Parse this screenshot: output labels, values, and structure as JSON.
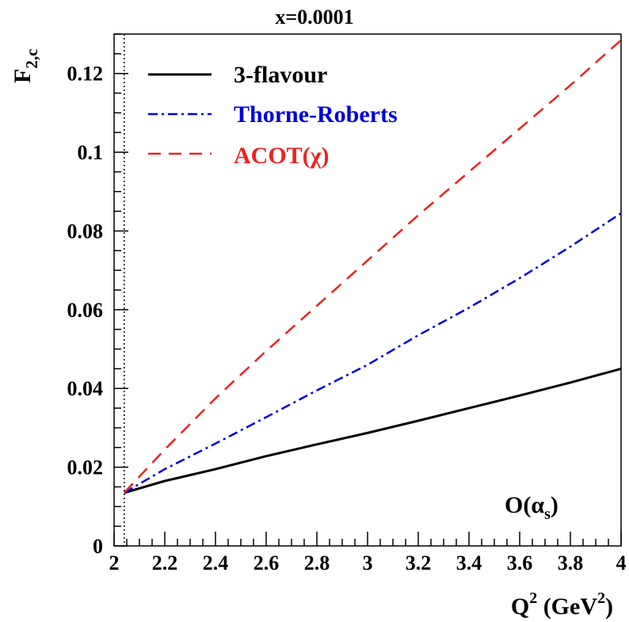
{
  "chart_data": {
    "type": "line",
    "title": "x=0.0001",
    "xlabel": {
      "main": "Q",
      "sup1": "2",
      "unit_open": " (GeV",
      "sup2": "2",
      "unit_close": ")"
    },
    "ylabel": {
      "main": "F",
      "sub": "2,c"
    },
    "xlim": [
      2,
      4
    ],
    "ylim": [
      0,
      0.13
    ],
    "xticks": [
      2,
      2.2,
      2.4,
      2.6,
      2.8,
      3,
      3.2,
      3.4,
      3.6,
      3.8,
      4
    ],
    "xtick_labels": [
      "2",
      "2.2",
      "2.4",
      "2.6",
      "2.8",
      "3",
      "3.2",
      "3.4",
      "3.6",
      "3.8",
      "4"
    ],
    "yticks": [
      0,
      0.02,
      0.04,
      0.06,
      0.08,
      0.1,
      0.12
    ],
    "ytick_labels": [
      "0",
      "0.02",
      "0.04",
      "0.06",
      "0.08",
      "0.1",
      "0.12"
    ],
    "threshold_x": 2.04,
    "annotation": {
      "main": "O(α",
      "sub": "s",
      "close": ")"
    },
    "legend_position": "top-left",
    "series": [
      {
        "name": "3-flavour",
        "color": "#000000",
        "dash": "solid",
        "x": [
          2.04,
          2.2,
          2.4,
          2.6,
          2.8,
          3.0,
          3.2,
          3.4,
          3.6,
          3.8,
          4.0
        ],
        "y": [
          0.0135,
          0.0165,
          0.0195,
          0.0228,
          0.0258,
          0.0287,
          0.0318,
          0.035,
          0.0382,
          0.0415,
          0.045
        ]
      },
      {
        "name": "Thorne-Roberts",
        "color": "#0000dd",
        "dash": "dashdot",
        "x": [
          2.04,
          2.2,
          2.4,
          2.6,
          2.8,
          3.0,
          3.2,
          3.4,
          3.6,
          3.8,
          4.0
        ],
        "y": [
          0.0135,
          0.0195,
          0.026,
          0.0327,
          0.0395,
          0.046,
          0.0535,
          0.0605,
          0.068,
          0.076,
          0.0845
        ]
      },
      {
        "name": "ACOT(χ)",
        "color": "#ee2222",
        "dash": "dashed",
        "x": [
          2.04,
          2.2,
          2.4,
          2.6,
          2.8,
          3.0,
          3.2,
          3.4,
          3.6,
          3.8,
          4.0
        ],
        "y": [
          0.0135,
          0.0245,
          0.0375,
          0.0495,
          0.061,
          0.0725,
          0.084,
          0.095,
          0.106,
          0.117,
          0.1285
        ]
      }
    ]
  }
}
